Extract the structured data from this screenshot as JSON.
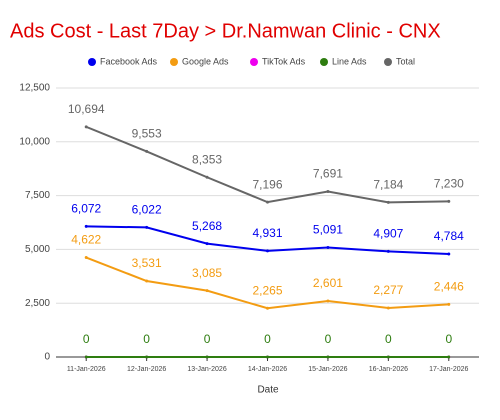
{
  "chart_data": {
    "type": "line",
    "title": "Ads Cost - Last 7Day > Dr.Namwan Clinic - CNX",
    "x_label": "Date",
    "categories": [
      "11-Jan-2026",
      "12-Jan-2026",
      "13-Jan-2026",
      "14-Jan-2026",
      "15-Jan-2026",
      "16-Jan-2026",
      "17-Jan-2026"
    ],
    "series": [
      {
        "name": "Facebook Ads",
        "color": "#0000ee",
        "values": [
          6072,
          6022,
          5268,
          4931,
          5091,
          4907,
          4784
        ],
        "value_labels": [
          "6,072",
          "6,022",
          "5,268",
          "4,931",
          "5,091",
          "4,907",
          "4,784"
        ]
      },
      {
        "name": "Google Ads",
        "color": "#f39c12",
        "values": [
          4622,
          3531,
          3085,
          2265,
          2601,
          2277,
          2446
        ],
        "value_labels": [
          "4,622",
          "3,531",
          "3,085",
          "2,265",
          "2,601",
          "2,277",
          "2,446"
        ]
      },
      {
        "name": "TikTok Ads",
        "color": "#ee00ee",
        "values": [
          0,
          0,
          0,
          0,
          0,
          0,
          0
        ]
      },
      {
        "name": "Line Ads",
        "color": "#2e7d10",
        "values": [
          0,
          0,
          0,
          0,
          0,
          0,
          0
        ],
        "show_labels": true
      },
      {
        "name": "Total",
        "color": "#666666",
        "values": [
          10694,
          9553,
          8353,
          7196,
          7691,
          7184,
          7230
        ],
        "value_labels": [
          "10,694",
          "9,553",
          "8,353",
          "7,196",
          "7,691",
          "7,184",
          "7,230"
        ]
      }
    ],
    "ylim": [
      0,
      12500
    ],
    "yticks": [
      0,
      {
        "value": 2500,
        "label": "2,500"
      },
      {
        "value": 5000,
        "label": "5,000"
      },
      {
        "value": 7500,
        "label": "7,500"
      },
      {
        "value": 10000,
        "label": "10,000"
      },
      {
        "value": 12500,
        "label": "12,500"
      }
    ],
    "grid": true,
    "legend": "top"
  }
}
